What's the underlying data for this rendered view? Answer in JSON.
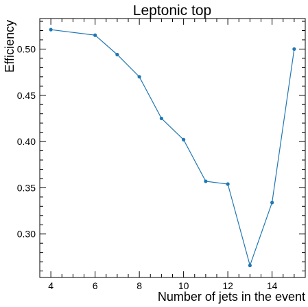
{
  "chart_data": {
    "type": "line",
    "title": "Leptonic top",
    "xlabel": "Number of jets in the event",
    "ylabel": "Efficiency",
    "x": [
      4,
      6,
      7,
      8,
      9,
      10,
      11,
      12,
      13,
      14,
      15
    ],
    "series": [
      {
        "values": [
          0.521,
          0.515,
          0.494,
          0.47,
          0.425,
          0.402,
          0.357,
          0.354,
          0.266,
          0.334,
          0.5
        ],
        "color": "#1f77b4"
      }
    ],
    "xlim": [
      3.5,
      15.5
    ],
    "ylim": [
      0.253,
      0.533
    ],
    "x_ticks": [
      4,
      6,
      8,
      10,
      12,
      14
    ],
    "x_tick_labels": [
      "4",
      "6",
      "8",
      "10",
      "12",
      "14"
    ],
    "y_ticks": [
      0.3,
      0.35,
      0.4,
      0.45,
      0.5
    ],
    "y_tick_labels": [
      "0.30",
      "0.35",
      "0.40",
      "0.45",
      "0.50"
    ],
    "grid": false,
    "legend": "none",
    "markers": true
  }
}
